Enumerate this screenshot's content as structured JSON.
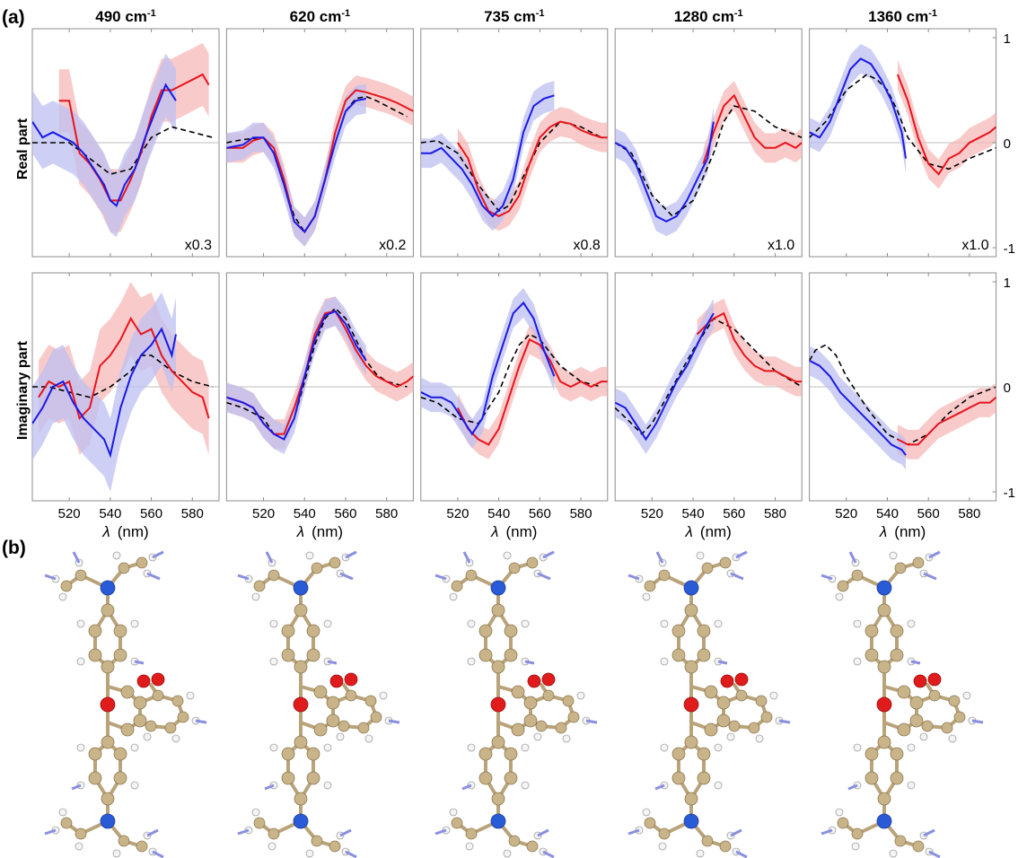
{
  "panel_labels": {
    "a": "(a)",
    "b": "(b)"
  },
  "column_titles": [
    {
      "num": "490",
      "unit": "cm",
      "sup": "-1"
    },
    {
      "num": "620",
      "unit": "cm",
      "sup": "-1"
    },
    {
      "num": "735",
      "unit": "cm",
      "sup": "-1"
    },
    {
      "num": "1280",
      "unit": "cm",
      "sup": "-1"
    },
    {
      "num": "1360",
      "unit": "cm",
      "sup": "-1"
    }
  ],
  "row_labels": [
    "Real part",
    "Imaginary part"
  ],
  "scale_labels": [
    "x0.3",
    "x0.2",
    "x0.8",
    "x1.0",
    "x1.0"
  ],
  "right_axis_ticks": [
    "1",
    "0",
    "-1"
  ],
  "xaxis": {
    "ticks": [
      "520",
      "540",
      "560",
      "580"
    ],
    "label_symbol": "λ",
    "label_unit": "(nm)"
  },
  "colors": {
    "red": "#e8141c",
    "blue": "#1a1ae6",
    "red_band": "#f7b8b8",
    "blue_band": "#bdbff0",
    "fit": "#000000",
    "atom_c": "#c9b48a",
    "atom_h": "#f2f2f2",
    "atom_n": "#2a5bd7",
    "atom_o": "#e01b1b",
    "arrow": "#8a8fe0"
  },
  "chart_data": {
    "type": "line",
    "x_unit": "nm",
    "xlim": [
      502,
      593
    ],
    "ylim": [
      -1,
      1
    ],
    "grid": false,
    "series_styles": {
      "red": "solid red with light-red error band",
      "blue": "solid blue with light-blue error band",
      "fit": "black dashed"
    },
    "panels": [
      {
        "column": "490 cm-1",
        "part": "Real part",
        "scale": "x0.3",
        "red": {
          "x": [
            515,
            520,
            525,
            530,
            535,
            540,
            545,
            550,
            555,
            560,
            565,
            570,
            575,
            580,
            585,
            588
          ],
          "y": [
            0.4,
            0.4,
            -0.1,
            -0.2,
            -0.35,
            -0.55,
            -0.55,
            -0.35,
            -0.1,
            0.25,
            0.5,
            0.5,
            0.55,
            0.6,
            0.65,
            0.55
          ]
        },
        "blue": {
          "x": [
            502,
            507,
            512,
            517,
            522,
            527,
            532,
            537,
            540,
            543,
            547,
            552,
            557,
            562,
            567,
            572
          ],
          "y": [
            0.2,
            0.05,
            0.1,
            0.05,
            0.0,
            -0.1,
            -0.25,
            -0.4,
            -0.55,
            -0.6,
            -0.4,
            -0.25,
            0.05,
            0.3,
            0.55,
            0.4
          ]
        },
        "fit": {
          "x": [
            502,
            510,
            520,
            530,
            540,
            550,
            560,
            570,
            580,
            590
          ],
          "y": [
            0.0,
            0.0,
            0.0,
            -0.15,
            -0.3,
            -0.25,
            0.05,
            0.15,
            0.1,
            0.05
          ]
        }
      },
      {
        "column": "620 cm-1",
        "part": "Real part",
        "scale": "x0.2",
        "red": {
          "x": [
            502,
            510,
            515,
            520,
            525,
            530,
            535,
            540,
            545,
            550,
            555,
            560,
            565,
            570,
            575,
            580,
            585,
            590,
            593
          ],
          "y": [
            -0.05,
            -0.05,
            0.02,
            0.05,
            -0.05,
            -0.35,
            -0.75,
            -0.85,
            -0.7,
            -0.35,
            0.1,
            0.4,
            0.5,
            0.48,
            0.45,
            0.42,
            0.38,
            0.33,
            0.3
          ]
        },
        "blue": {
          "x": [
            502,
            510,
            515,
            520,
            525,
            530,
            535,
            540,
            545,
            550,
            555,
            560,
            565,
            570
          ],
          "y": [
            -0.05,
            -0.02,
            0.05,
            0.05,
            -0.1,
            -0.4,
            -0.75,
            -0.85,
            -0.7,
            -0.35,
            0.0,
            0.3,
            0.4,
            0.42
          ]
        },
        "fit": {
          "x": [
            502,
            510,
            520,
            525,
            530,
            535,
            540,
            545,
            550,
            555,
            560,
            565,
            570,
            575,
            580,
            590
          ],
          "y": [
            0.0,
            0.03,
            0.05,
            -0.1,
            -0.4,
            -0.7,
            -0.85,
            -0.7,
            -0.35,
            0.0,
            0.3,
            0.42,
            0.44,
            0.4,
            0.35,
            0.25
          ]
        }
      },
      {
        "column": "735 cm-1",
        "part": "Real part",
        "scale": "x0.8",
        "red": {
          "x": [
            520,
            525,
            530,
            535,
            540,
            545,
            550,
            555,
            560,
            565,
            570,
            575,
            580,
            585,
            590,
            593
          ],
          "y": [
            0.0,
            -0.15,
            -0.45,
            -0.65,
            -0.7,
            -0.65,
            -0.5,
            -0.2,
            0.05,
            0.15,
            0.2,
            0.18,
            0.12,
            0.08,
            0.05,
            0.05
          ]
        },
        "blue": {
          "x": [
            502,
            507,
            512,
            517,
            522,
            527,
            532,
            537,
            542,
            547,
            552,
            557,
            562,
            567
          ],
          "y": [
            -0.1,
            -0.1,
            -0.05,
            -0.15,
            -0.25,
            -0.4,
            -0.6,
            -0.7,
            -0.6,
            -0.35,
            0.1,
            0.35,
            0.42,
            0.45
          ]
        },
        "fit": {
          "x": [
            502,
            510,
            520,
            530,
            540,
            545,
            550,
            560,
            570,
            580,
            590
          ],
          "y": [
            0.0,
            0.02,
            -0.1,
            -0.4,
            -0.65,
            -0.6,
            -0.4,
            0.0,
            0.2,
            0.15,
            0.05
          ]
        }
      },
      {
        "column": "1280 cm-1",
        "part": "Real part",
        "scale": "x1.0",
        "red": {
          "x": [
            545,
            550,
            555,
            560,
            565,
            570,
            575,
            580,
            585,
            590,
            593
          ],
          "y": [
            -0.2,
            0.1,
            0.35,
            0.45,
            0.25,
            0.05,
            -0.05,
            -0.05,
            0.0,
            -0.05,
            0.0
          ]
        },
        "blue": {
          "x": [
            502,
            507,
            512,
            517,
            522,
            527,
            532,
            537,
            542,
            547,
            550
          ],
          "y": [
            0.0,
            -0.05,
            -0.2,
            -0.45,
            -0.7,
            -0.75,
            -0.7,
            -0.55,
            -0.35,
            -0.15,
            0.2
          ]
        },
        "fit": {
          "x": [
            502,
            510,
            520,
            530,
            540,
            550,
            555,
            560,
            570,
            580,
            593
          ],
          "y": [
            0.0,
            -0.1,
            -0.5,
            -0.7,
            -0.55,
            -0.1,
            0.2,
            0.35,
            0.3,
            0.15,
            0.05
          ]
        }
      },
      {
        "column": "1360 cm-1",
        "part": "Real part",
        "scale": "x1.0",
        "red": {
          "x": [
            545,
            550,
            555,
            560,
            565,
            570,
            575,
            580,
            585,
            590,
            593
          ],
          "y": [
            0.65,
            0.4,
            0.05,
            -0.2,
            -0.3,
            -0.15,
            -0.1,
            0.0,
            0.05,
            0.1,
            0.15
          ]
        },
        "blue": {
          "x": [
            502,
            507,
            512,
            517,
            522,
            527,
            532,
            537,
            542,
            547,
            549
          ],
          "y": [
            0.1,
            0.05,
            0.2,
            0.45,
            0.7,
            0.8,
            0.75,
            0.6,
            0.4,
            0.1,
            -0.15
          ]
        },
        "fit": {
          "x": [
            502,
            510,
            520,
            530,
            535,
            540,
            545,
            550,
            560,
            570,
            580,
            593
          ],
          "y": [
            0.05,
            0.2,
            0.5,
            0.65,
            0.6,
            0.5,
            0.3,
            0.05,
            -0.2,
            -0.25,
            -0.15,
            -0.05
          ]
        }
      },
      {
        "column": "490 cm-1",
        "part": "Imaginary part",
        "scale": "",
        "red": {
          "x": [
            505,
            510,
            515,
            520,
            525,
            530,
            535,
            540,
            545,
            550,
            555,
            560,
            565,
            570,
            575,
            580,
            585,
            588
          ],
          "y": [
            -0.1,
            0.05,
            0.0,
            0.05,
            -0.3,
            -0.2,
            0.2,
            0.3,
            0.45,
            0.65,
            0.5,
            0.55,
            0.3,
            0.15,
            0.05,
            -0.05,
            -0.1,
            -0.3
          ]
        },
        "blue": {
          "x": [
            502,
            507,
            512,
            517,
            522,
            527,
            532,
            537,
            540,
            545,
            550,
            555,
            560,
            565,
            570,
            572
          ],
          "y": [
            -0.35,
            -0.2,
            0.0,
            0.05,
            -0.15,
            -0.3,
            -0.4,
            -0.5,
            -0.65,
            -0.2,
            0.1,
            0.3,
            0.4,
            0.55,
            0.3,
            0.5
          ]
        },
        "fit": {
          "x": [
            502,
            510,
            520,
            530,
            540,
            550,
            555,
            560,
            570,
            580,
            590
          ],
          "y": [
            0.0,
            0.0,
            -0.05,
            -0.1,
            0.0,
            0.15,
            0.3,
            0.3,
            0.15,
            0.05,
            0.0
          ]
        }
      },
      {
        "column": "620 cm-1",
        "part": "Imaginary part",
        "scale": "",
        "red": {
          "x": [
            502,
            510,
            515,
            520,
            525,
            530,
            535,
            540,
            545,
            550,
            555,
            560,
            565,
            570,
            575,
            580,
            585,
            590,
            593
          ],
          "y": [
            -0.1,
            -0.15,
            -0.2,
            -0.35,
            -0.45,
            -0.45,
            -0.2,
            0.1,
            0.5,
            0.7,
            0.72,
            0.55,
            0.35,
            0.2,
            0.1,
            0.05,
            0.0,
            0.05,
            0.1
          ]
        },
        "blue": {
          "x": [
            502,
            510,
            515,
            520,
            525,
            530,
            535,
            540,
            545,
            550,
            555,
            560,
            565,
            570
          ],
          "y": [
            -0.1,
            -0.15,
            -0.2,
            -0.35,
            -0.45,
            -0.5,
            -0.3,
            0.1,
            0.45,
            0.68,
            0.72,
            0.6,
            0.4,
            0.25
          ]
        },
        "fit": {
          "x": [
            502,
            510,
            520,
            525,
            530,
            535,
            540,
            545,
            550,
            555,
            560,
            565,
            570,
            575,
            580,
            590
          ],
          "y": [
            -0.15,
            -0.2,
            -0.3,
            -0.45,
            -0.5,
            -0.3,
            0.05,
            0.4,
            0.65,
            0.75,
            0.65,
            0.45,
            0.25,
            0.12,
            0.05,
            0.0
          ]
        }
      },
      {
        "column": "735 cm-1",
        "part": "Imaginary part",
        "scale": "",
        "red": {
          "x": [
            520,
            525,
            530,
            535,
            540,
            545,
            550,
            555,
            560,
            565,
            570,
            575,
            580,
            585,
            590,
            593
          ],
          "y": [
            -0.2,
            -0.4,
            -0.5,
            -0.55,
            -0.4,
            -0.1,
            0.2,
            0.45,
            0.4,
            0.25,
            0.05,
            0.0,
            0.05,
            0.0,
            0.05,
            0.05
          ]
        },
        "blue": {
          "x": [
            502,
            507,
            512,
            517,
            522,
            527,
            532,
            537,
            542,
            547,
            552,
            557,
            562,
            567
          ],
          "y": [
            -0.05,
            -0.1,
            -0.1,
            -0.15,
            -0.3,
            -0.45,
            -0.3,
            0.1,
            0.4,
            0.7,
            0.8,
            0.65,
            0.35,
            0.1
          ]
        },
        "fit": {
          "x": [
            502,
            510,
            520,
            530,
            540,
            545,
            550,
            555,
            560,
            570,
            580,
            590
          ],
          "y": [
            -0.1,
            -0.15,
            -0.3,
            -0.35,
            -0.05,
            0.2,
            0.4,
            0.5,
            0.45,
            0.2,
            0.05,
            0.0
          ]
        }
      },
      {
        "column": "1280 cm-1",
        "part": "Imaginary part",
        "scale": "",
        "red": {
          "x": [
            542,
            547,
            550,
            555,
            560,
            565,
            570,
            575,
            580,
            585,
            590,
            593
          ],
          "y": [
            0.5,
            0.6,
            0.65,
            0.7,
            0.45,
            0.3,
            0.2,
            0.15,
            0.15,
            0.1,
            0.05,
            0.05
          ]
        },
        "blue": {
          "x": [
            502,
            507,
            512,
            517,
            522,
            527,
            532,
            537,
            542,
            547,
            550
          ],
          "y": [
            -0.15,
            -0.2,
            -0.35,
            -0.5,
            -0.35,
            -0.15,
            0.05,
            0.2,
            0.4,
            0.6,
            0.7
          ]
        },
        "fit": {
          "x": [
            502,
            510,
            515,
            520,
            530,
            540,
            550,
            560,
            570,
            580,
            593
          ],
          "y": [
            -0.2,
            -0.35,
            -0.45,
            -0.35,
            0.0,
            0.35,
            0.65,
            0.55,
            0.35,
            0.15,
            0.0
          ]
        }
      },
      {
        "column": "1360 cm-1",
        "part": "Imaginary part",
        "scale": "",
        "red": {
          "x": [
            545,
            550,
            555,
            560,
            565,
            570,
            575,
            580,
            585,
            590,
            593
          ],
          "y": [
            -0.5,
            -0.55,
            -0.55,
            -0.45,
            -0.35,
            -0.3,
            -0.25,
            -0.2,
            -0.15,
            -0.15,
            -0.1
          ]
        },
        "blue": {
          "x": [
            502,
            507,
            512,
            517,
            522,
            527,
            532,
            537,
            542,
            547,
            549
          ],
          "y": [
            0.25,
            0.2,
            0.1,
            -0.05,
            -0.15,
            -0.25,
            -0.35,
            -0.45,
            -0.55,
            -0.6,
            -0.65
          ]
        },
        "fit": {
          "x": [
            502,
            505,
            510,
            515,
            520,
            530,
            540,
            550,
            560,
            570,
            580,
            593
          ],
          "y": [
            0.25,
            0.35,
            0.4,
            0.3,
            0.1,
            -0.2,
            -0.45,
            -0.55,
            -0.45,
            -0.25,
            -0.1,
            0.0
          ]
        }
      }
    ]
  }
}
